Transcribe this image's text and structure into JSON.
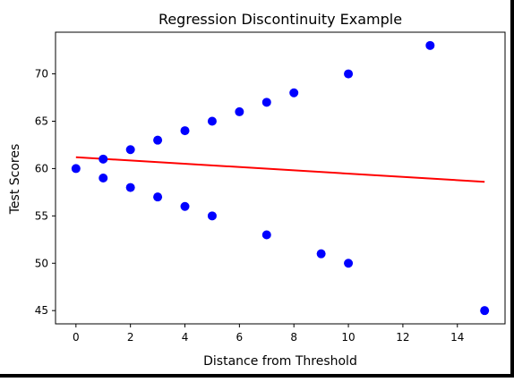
{
  "chart_data": {
    "type": "scatter",
    "title": "Regression Discontinuity Example",
    "xlabel": "Distance from Threshold",
    "ylabel": "Test Scores",
    "xlim": [
      -0.75,
      15.75
    ],
    "ylim": [
      43.6,
      74.4
    ],
    "xticks": [
      0,
      2,
      4,
      6,
      8,
      10,
      12,
      14
    ],
    "yticks": [
      45,
      50,
      55,
      60,
      65,
      70
    ],
    "grid": false,
    "points": {
      "color": "#0000ff",
      "x": [
        0,
        1,
        2,
        3,
        4,
        5,
        6,
        7,
        8,
        10,
        13,
        1,
        2,
        3,
        4,
        5,
        7,
        9,
        10,
        15
      ],
      "y": [
        60,
        61,
        62,
        63,
        64,
        65,
        66,
        67,
        68,
        70,
        73,
        59,
        58,
        57,
        56,
        55,
        53,
        51,
        50,
        45
      ]
    },
    "fit_line": {
      "color": "#ff0000",
      "x": [
        0,
        15
      ],
      "y": [
        61.2,
        58.6
      ]
    }
  }
}
